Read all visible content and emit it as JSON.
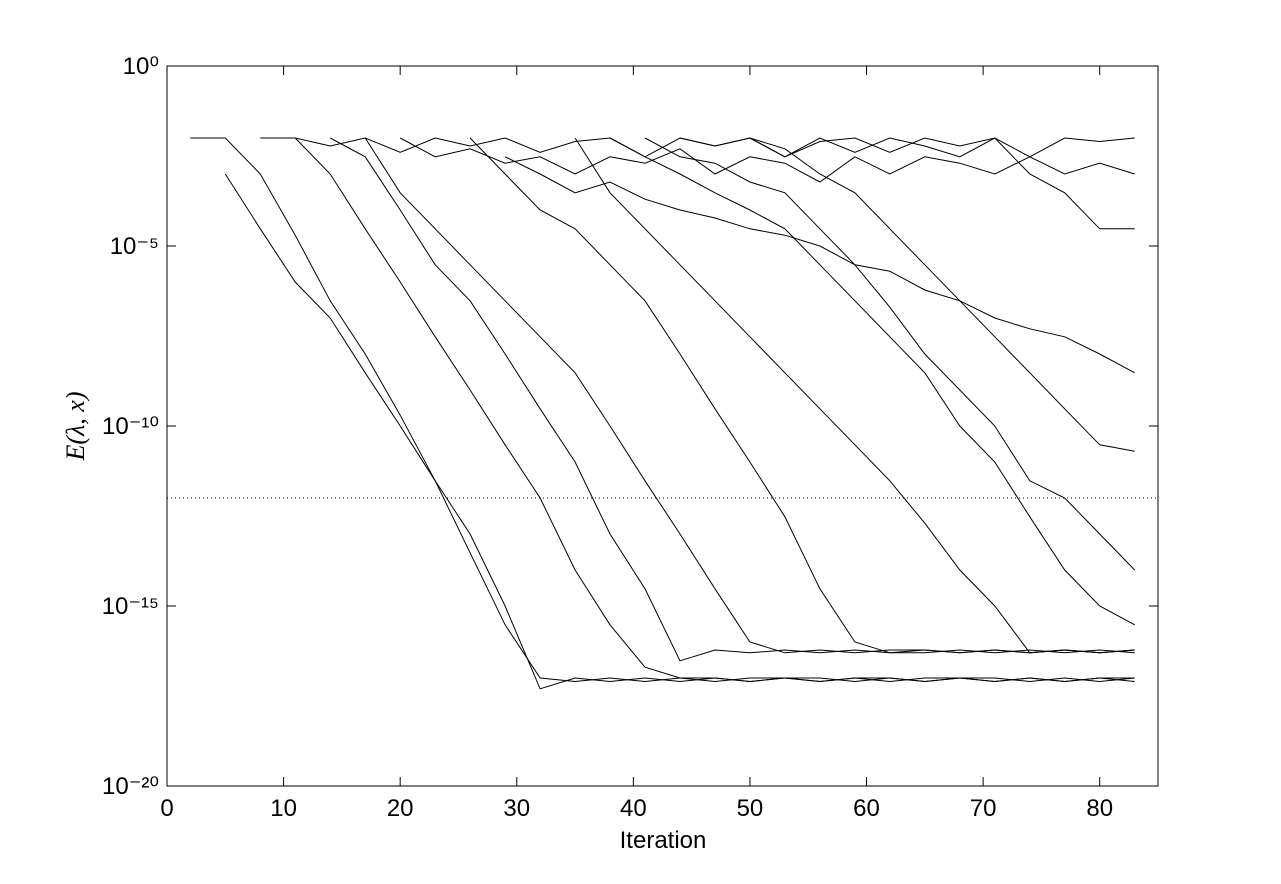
{
  "chart_data": {
    "type": "line",
    "xlabel": "Iteration",
    "ylabel": "E(λ, x)",
    "log_y": true,
    "color": "#000000",
    "reference_line": 1e-12,
    "xlim": [
      0,
      85
    ],
    "xticks": [
      0,
      10,
      20,
      30,
      40,
      50,
      60,
      70,
      80
    ],
    "ylim": [
      1e-20,
      1
    ],
    "yticks": [
      {
        "value": 1e-20,
        "label": "10⁻²⁰"
      },
      {
        "value": 1e-15,
        "label": "10⁻¹⁵"
      },
      {
        "value": 1e-10,
        "label": "10⁻¹⁰"
      },
      {
        "value": 1e-05,
        "label": "10⁻⁵"
      },
      {
        "value": 1,
        "label": "10⁰"
      }
    ],
    "x": [
      2,
      5,
      8,
      11,
      14,
      17,
      20,
      23,
      26,
      29,
      32,
      35,
      38,
      41,
      44,
      47,
      50,
      53,
      56,
      59,
      62,
      65,
      68,
      71,
      74,
      77,
      80,
      83
    ],
    "series": [
      {
        "values": [
          0.01,
          0.01,
          0.001,
          2e-05,
          3e-07,
          1e-08,
          2e-10,
          3e-12,
          1e-13,
          1e-15,
          5e-18,
          1e-17,
          8e-18,
          1e-17,
          8e-18,
          1e-17,
          8e-18,
          1e-17,
          1e-17,
          8e-18,
          1e-17,
          8e-18,
          1e-17,
          1e-17,
          8e-18,
          1e-17,
          8e-18,
          1e-17
        ]
      },
      {
        "values": [
          null,
          0.001,
          3e-05,
          1e-06,
          1e-07,
          3e-09,
          1e-10,
          3e-12,
          3e-14,
          3e-16,
          1e-17,
          8e-18,
          1e-17,
          8e-18,
          1e-17,
          1e-17,
          8e-18,
          1e-17,
          8e-18,
          1e-17,
          1e-17,
          8e-18,
          1e-17,
          8e-18,
          1e-17,
          8e-18,
          1e-17,
          8e-18
        ]
      },
      {
        "values": [
          null,
          null,
          null,
          0.01,
          0.001,
          3e-05,
          1e-06,
          3e-08,
          1e-09,
          3e-11,
          1e-12,
          1e-14,
          3e-16,
          2e-17,
          1e-17,
          8e-18,
          1e-17,
          1e-17,
          8e-18,
          1e-17,
          8e-18,
          1e-17,
          1e-17,
          8e-18,
          1e-17,
          8e-18,
          1e-17,
          1e-17
        ]
      },
      {
        "values": [
          null,
          null,
          null,
          null,
          0.01,
          0.003,
          0.0001,
          3e-06,
          3e-07,
          1e-08,
          3e-10,
          1e-11,
          1e-13,
          3e-15,
          3e-17,
          6e-17,
          5e-17,
          6e-17,
          5e-17,
          6e-17,
          5e-17,
          5e-17,
          6e-17,
          5e-17,
          6e-17,
          5e-17,
          6e-17,
          5e-17
        ]
      },
      {
        "values": [
          null,
          null,
          null,
          null,
          null,
          0.01,
          0.0003,
          3e-05,
          3e-06,
          3e-07,
          3e-08,
          3e-09,
          1e-10,
          3e-12,
          1e-13,
          3e-15,
          1e-16,
          5e-17,
          6e-17,
          5e-17,
          6e-17,
          6e-17,
          5e-17,
          6e-17,
          5e-17,
          6e-17,
          5e-17,
          6e-17
        ]
      },
      {
        "values": [
          null,
          null,
          null,
          null,
          null,
          null,
          null,
          null,
          0.01,
          0.001,
          0.0001,
          3e-05,
          3e-06,
          3e-07,
          1e-08,
          3e-10,
          1e-11,
          3e-13,
          3e-15,
          1e-16,
          5e-17,
          6e-17,
          5e-17,
          6e-17,
          5e-17,
          6e-17,
          5e-17,
          6e-17
        ]
      },
      {
        "values": [
          null,
          null,
          null,
          null,
          null,
          null,
          null,
          null,
          null,
          null,
          null,
          0.01,
          0.0003,
          3e-05,
          3e-06,
          3e-07,
          3e-08,
          3e-09,
          3e-10,
          3e-11,
          3e-12,
          2e-13,
          1e-14,
          1e-15,
          5e-17,
          6e-17,
          5e-17,
          6e-17
        ]
      },
      {
        "values": [
          null,
          null,
          null,
          null,
          null,
          null,
          null,
          null,
          null,
          null,
          null,
          null,
          0.01,
          0.003,
          0.001,
          0.0003,
          0.0001,
          3e-05,
          3e-06,
          3e-07,
          3e-08,
          3e-09,
          1e-10,
          1e-11,
          3e-13,
          1e-14,
          1e-15,
          3e-16
        ]
      },
      {
        "values": [
          null,
          null,
          null,
          null,
          null,
          null,
          null,
          null,
          null,
          null,
          null,
          null,
          null,
          0.01,
          0.003,
          0.002,
          0.0006,
          0.0003,
          3e-05,
          3e-06,
          2e-07,
          1e-08,
          1e-09,
          1e-10,
          3e-12,
          1e-12,
          1e-13,
          1e-14
        ]
      },
      {
        "values": [
          null,
          null,
          0.01,
          0.01,
          0.006,
          0.01,
          0.004,
          0.01,
          0.006,
          0.01,
          0.004,
          0.008,
          0.01,
          0.003,
          0.01,
          0.006,
          0.01,
          0.003,
          0.008,
          0.01,
          0.004,
          0.01,
          0.006,
          0.01,
          0.003,
          0.01,
          0.008,
          0.01
        ]
      },
      {
        "values": [
          null,
          null,
          null,
          null,
          null,
          null,
          0.01,
          0.003,
          0.005,
          0.002,
          0.003,
          0.001,
          0.003,
          0.002,
          0.005,
          0.001,
          0.003,
          0.002,
          0.0006,
          0.003,
          0.001,
          0.003,
          0.002,
          0.001,
          0.003,
          0.001,
          0.002,
          0.001
        ]
      },
      {
        "values": [
          null,
          null,
          null,
          null,
          null,
          null,
          null,
          null,
          null,
          0.003,
          0.001,
          0.0003,
          0.0006,
          0.0002,
          0.0001,
          6e-05,
          3e-05,
          2e-05,
          1e-05,
          3e-06,
          2e-06,
          6e-07,
          3e-07,
          1e-07,
          5e-08,
          3e-08,
          1e-08,
          3e-09
        ]
      },
      {
        "values": [
          null,
          null,
          null,
          null,
          null,
          null,
          null,
          null,
          null,
          null,
          null,
          null,
          null,
          null,
          null,
          null,
          0.01,
          0.005,
          0.001,
          0.0003,
          3e-05,
          3e-06,
          3e-07,
          3e-08,
          3e-09,
          3e-10,
          3e-11,
          2e-11
        ]
      },
      {
        "values": [
          null,
          null,
          null,
          null,
          null,
          null,
          null,
          null,
          null,
          null,
          null,
          null,
          null,
          null,
          0.01,
          0.006,
          0.01,
          0.003,
          0.01,
          0.004,
          0.01,
          0.006,
          0.003,
          0.01,
          0.001,
          0.0003,
          3e-05,
          3e-05
        ]
      }
    ]
  }
}
